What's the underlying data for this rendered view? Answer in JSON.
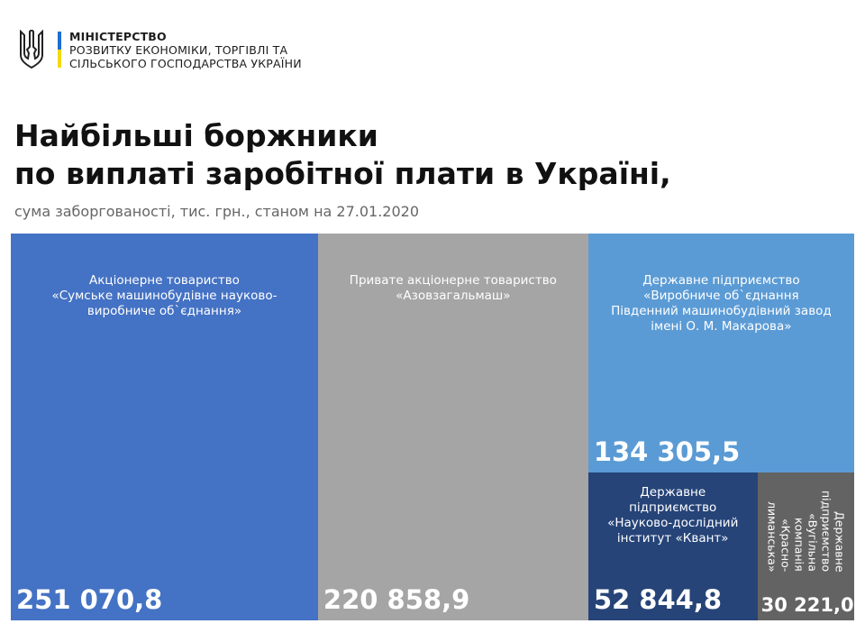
{
  "header": {
    "ministry_line1": "МІНІСТЕРСТВО",
    "ministry_line2": "РОЗВИТКУ ЕКОНОМІКИ, ТОРГІВЛІ ТА",
    "ministry_line3": "СІЛЬСЬКОГО ГОСПОДАРСТВА УКРАЇНИ"
  },
  "chart_data": {
    "type": "treemap",
    "title_line1": "Найбільші боржники",
    "title_line2": "по виплаті заробітної плати в Україні,",
    "subtitle": "сума заборгованості, тис. грн., станом на 27.01.2020",
    "items": [
      {
        "label": [
          "Акціонерне товариство",
          "«Сумське машинобудівне науково-",
          "виробниче об`єднання»"
        ],
        "value": 251070.8,
        "value_text": "251 070,8",
        "color": "#4472c4"
      },
      {
        "label": [
          "Привате акціонерне товариство",
          "«Азовзагальмаш»"
        ],
        "value": 220858.9,
        "value_text": "220 858,9",
        "color": "#a5a5a5"
      },
      {
        "label": [
          "Державне підприємство",
          "«Виробниче об`єднання",
          "Південний машинобудівний завод",
          "імені О. М. Макарова»"
        ],
        "value": 134305.5,
        "value_text": "134 305,5",
        "color": "#5b9bd5"
      },
      {
        "label": [
          "Державне",
          "підприємство",
          "«Науково-дослідний",
          "інститут «Квант»"
        ],
        "value": 52844.8,
        "value_text": "52 844,8",
        "color": "#264478"
      },
      {
        "label": [
          "Державне",
          "підприємство",
          "«Вугільна",
          "компанія",
          "«Красно-",
          "лиманська»"
        ],
        "value": 30221.0,
        "value_text": "30 221,0",
        "color": "#636363"
      }
    ]
  }
}
